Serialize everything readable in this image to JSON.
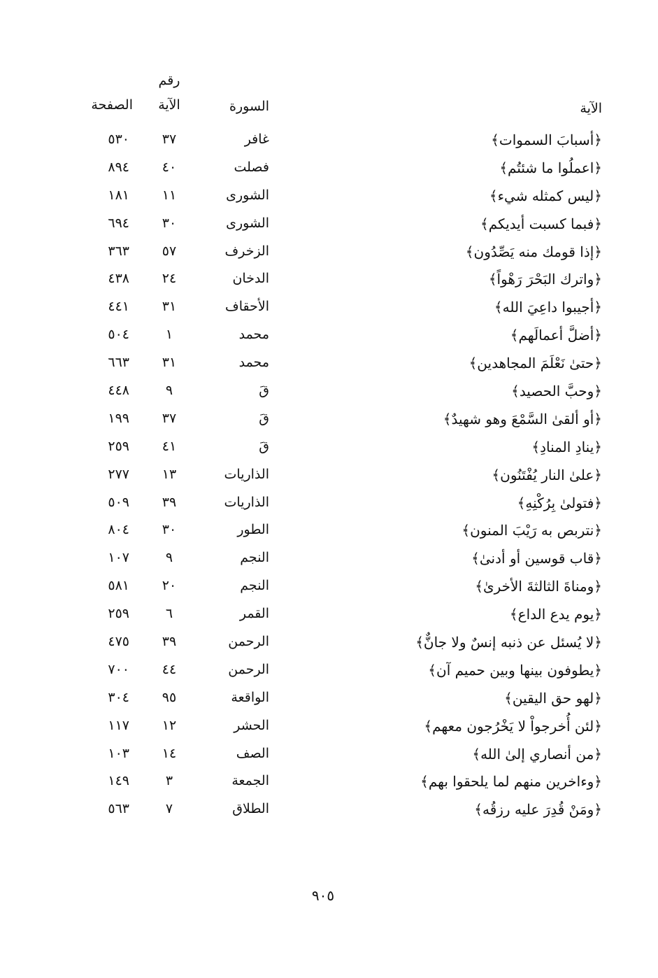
{
  "header": {
    "verse": "الآية",
    "surah": "السورة",
    "ayah_number_line1": "رقم",
    "ayah_number_line2": "الآية",
    "page": "الصفحة"
  },
  "rows": [
    {
      "verse": "﴿أسبابَ السموات﴾",
      "surah": "غافر",
      "ayah": "٣٧",
      "page": "٥٣٠"
    },
    {
      "verse": "﴿اعملُوا ما شئتُم﴾",
      "surah": "فصلت",
      "ayah": "٤٠",
      "page": "٨٩٤"
    },
    {
      "verse": "﴿ليس كمثله شيء﴾",
      "surah": "الشورى",
      "ayah": "١١",
      "page": "١٨١"
    },
    {
      "verse": "﴿فبما كسبت أيديكم﴾",
      "surah": "الشورى",
      "ayah": "٣٠",
      "page": "٦٩٤"
    },
    {
      "verse": "﴿إذا قومك منه يَصِّدُون﴾",
      "surah": "الزخرف",
      "ayah": "٥٧",
      "page": "٣٦٣"
    },
    {
      "verse": "﴿واترك البَحْرَ رَهْواً﴾",
      "surah": "الدخان",
      "ayah": "٢٤",
      "page": "٤٣٨"
    },
    {
      "verse": "﴿أجيبوا داعِيَ الله﴾",
      "surah": "الأحقاف",
      "ayah": "٣١",
      "page": "٤٤١"
    },
    {
      "verse": "﴿أضلَّ أعمالَهم﴾",
      "surah": "محمد",
      "ayah": "١",
      "page": "٥٠٤"
    },
    {
      "verse": "﴿حتىٰ نَعْلَمَ المجاهدين﴾",
      "surah": "محمد",
      "ayah": "٣١",
      "page": "٦٦٣"
    },
    {
      "verse": "﴿وحبَّ الحصيد﴾",
      "surah": "قَ",
      "ayah": "٩",
      "page": "٤٤٨"
    },
    {
      "verse": "﴿أو ألقىٰ السَّمْعَ وهو شهيدٌ﴾",
      "surah": "قَ",
      "ayah": "٣٧",
      "page": "١٩٩"
    },
    {
      "verse": "﴿ينادِ المنادِ﴾",
      "surah": "قَ",
      "ayah": "٤١",
      "page": "٢٥٩"
    },
    {
      "verse": "﴿علىٰ النار يُفْتَنُون﴾",
      "surah": "الذاريات",
      "ayah": "١٣",
      "page": "٢٧٧"
    },
    {
      "verse": "﴿فتولىٰ بِرُكْنِهِ﴾",
      "surah": "الذاريات",
      "ayah": "٣٩",
      "page": "٥٠٩"
    },
    {
      "verse": "﴿نتربص به رَيْبَ المنون﴾",
      "surah": "الطور",
      "ayah": "٣٠",
      "page": "٨٠٤"
    },
    {
      "verse": "﴿قاب قوسين أو أدنىٰ﴾",
      "surah": "النجم",
      "ayah": "٩",
      "page": "١٠٧"
    },
    {
      "verse": "﴿ومناةَ الثالثةَ الأخرىٰ﴾",
      "surah": "النجم",
      "ayah": "٢٠",
      "page": "٥٨١"
    },
    {
      "verse": "﴿يوم  يدع الداع﴾",
      "surah": "القمر",
      "ayah": "٦",
      "page": "٢٥٩"
    },
    {
      "verse": "﴿لا يُسئل عن ذنبه إنسٌ ولا جانٌّ﴾",
      "surah": "الرحمن",
      "ayah": "٣٩",
      "page": "٤٧٥"
    },
    {
      "verse": "﴿يطوفون بينها وبين حميم آن﴾",
      "surah": "الرحمن",
      "ayah": "٤٤",
      "page": "٧٠٠"
    },
    {
      "verse": "﴿لهو حق اليقين﴾",
      "surah": "الواقعة",
      "ayah": "٩٥",
      "page": "٣٠٤"
    },
    {
      "verse": "﴿لئن أُخرجواْ لا يَخْرُجون معهم﴾",
      "surah": "الحشر",
      "ayah": "١٢",
      "page": "١١٧"
    },
    {
      "verse": "﴿من أنصاري إلىٰ الله﴾",
      "surah": "الصف",
      "ayah": "١٤",
      "page": "١٠٣"
    },
    {
      "verse": "﴿وءاخرين منهم لما يلحقوا بهم﴾",
      "surah": "الجمعة",
      "ayah": "٣",
      "page": "١٤٩"
    },
    {
      "verse": "﴿ومَنْ قُدِرَ عليه رزقُه﴾",
      "surah": "الطلاق",
      "ayah": "٧",
      "page": "٥٦٣"
    }
  ],
  "page_number": "٩٠٥"
}
